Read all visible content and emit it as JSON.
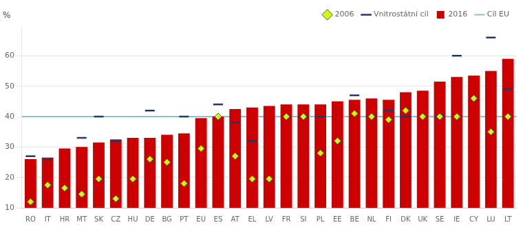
{
  "chart_data": {
    "type": "bar",
    "ylabel": "%",
    "categories": [
      "RO",
      "IT",
      "HR",
      "MT",
      "SK",
      "CZ",
      "HU",
      "DE",
      "BG",
      "PT",
      "EU",
      "ES",
      "AT",
      "EL",
      "LV",
      "FR",
      "SI",
      "PL",
      "EE",
      "BE",
      "NL",
      "FI",
      "DK",
      "UK",
      "SE",
      "IE",
      "CY",
      "LU",
      "LT"
    ],
    "series": [
      {
        "name": "2016",
        "type": "bar",
        "color": "#cc0000",
        "values": [
          26,
          26.5,
          29.5,
          30,
          31.5,
          32.5,
          33,
          33,
          34,
          34.5,
          39.5,
          40,
          42.5,
          43,
          43.5,
          44,
          44,
          44,
          45,
          45.5,
          46,
          45.5,
          48,
          48.5,
          51.5,
          53,
          53.5,
          55,
          59
        ]
      },
      {
        "name": "2006",
        "type": "scatter",
        "marker": "diamond",
        "color": "#ccff00",
        "values": [
          12,
          17.5,
          16.5,
          14.5,
          19.5,
          13,
          19.5,
          26,
          25,
          18,
          29.5,
          40,
          27,
          19.5,
          19.5,
          40,
          40,
          28,
          32,
          41,
          40,
          39,
          42,
          40,
          40,
          40,
          46,
          35,
          40
        ]
      },
      {
        "name": "Vnitrostátní cíl",
        "type": "scatter",
        "marker": "dash",
        "color": "#1f3864",
        "values": [
          27,
          26,
          null,
          33,
          40,
          32,
          null,
          42,
          null,
          40,
          null,
          44,
          38,
          32,
          null,
          null,
          40,
          40,
          null,
          47,
          40,
          42,
          40,
          null,
          40,
          60,
          null,
          66,
          49
        ]
      },
      {
        "name": "Cíl EU",
        "type": "hline",
        "color": "#8bbfd8",
        "value": 40
      }
    ],
    "ylim": [
      10,
      70
    ],
    "yticks": [
      10,
      20,
      30,
      40,
      50,
      60
    ],
    "grid": true,
    "legend": "top"
  }
}
